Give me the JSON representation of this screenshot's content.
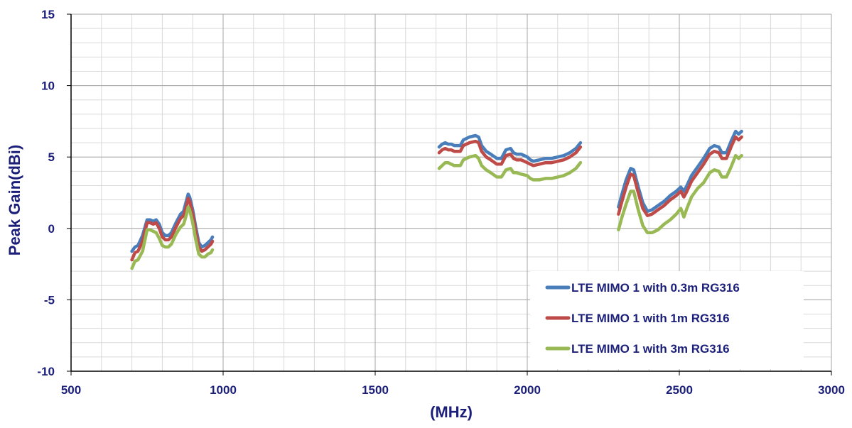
{
  "chart_data": {
    "type": "line",
    "xlabel": "(MHz)",
    "ylabel": "Peak Gain(dBi)",
    "xlim": [
      500,
      3000
    ],
    "ylim": [
      -10,
      15
    ],
    "x_ticks": [
      "500",
      "1000",
      "1500",
      "2000",
      "2500",
      "3000"
    ],
    "y_ticks": [
      "15",
      "10",
      "5",
      "0",
      "-5",
      "-10"
    ],
    "grid": true,
    "legend_position": "bottom-right",
    "series": [
      {
        "name": "LTE MIMO 1 with 0.3m RG316",
        "color": "#4a7ebb",
        "segments": [
          [
            [
              700,
              -1.6
            ],
            [
              710,
              -1.3
            ],
            [
              720,
              -1.2
            ],
            [
              735,
              -0.5
            ],
            [
              750,
              0.6
            ],
            [
              760,
              0.6
            ],
            [
              770,
              0.5
            ],
            [
              780,
              0.6
            ],
            [
              790,
              0.3
            ],
            [
              800,
              -0.3
            ],
            [
              810,
              -0.5
            ],
            [
              820,
              -0.5
            ],
            [
              830,
              -0.3
            ],
            [
              845,
              0.4
            ],
            [
              860,
              1.0
            ],
            [
              870,
              1.2
            ],
            [
              880,
              2.0
            ],
            [
              885,
              2.4
            ],
            [
              890,
              2.2
            ],
            [
              900,
              1.3
            ],
            [
              910,
              0.1
            ],
            [
              920,
              -1.0
            ],
            [
              930,
              -1.3
            ],
            [
              940,
              -1.2
            ],
            [
              950,
              -1.0
            ],
            [
              960,
              -0.8
            ],
            [
              965,
              -0.6
            ]
          ],
          [
            [
              1710,
              5.7
            ],
            [
              1720,
              5.9
            ],
            [
              1730,
              6.0
            ],
            [
              1740,
              5.9
            ],
            [
              1750,
              5.9
            ],
            [
              1760,
              5.8
            ],
            [
              1780,
              5.8
            ],
            [
              1790,
              6.2
            ],
            [
              1810,
              6.4
            ],
            [
              1830,
              6.5
            ],
            [
              1840,
              6.4
            ],
            [
              1850,
              5.8
            ],
            [
              1865,
              5.4
            ],
            [
              1880,
              5.2
            ],
            [
              1900,
              4.9
            ],
            [
              1915,
              4.9
            ],
            [
              1930,
              5.5
            ],
            [
              1945,
              5.6
            ],
            [
              1955,
              5.3
            ],
            [
              1965,
              5.2
            ],
            [
              1980,
              5.2
            ],
            [
              2000,
              5.0
            ],
            [
              2010,
              4.8
            ],
            [
              2020,
              4.7
            ],
            [
              2040,
              4.8
            ],
            [
              2060,
              4.9
            ],
            [
              2080,
              4.9
            ],
            [
              2100,
              5.0
            ],
            [
              2120,
              5.1
            ],
            [
              2140,
              5.3
            ],
            [
              2160,
              5.6
            ],
            [
              2175,
              6.0
            ]
          ],
          [
            [
              2300,
              1.5
            ],
            [
              2310,
              2.3
            ],
            [
              2325,
              3.4
            ],
            [
              2340,
              4.2
            ],
            [
              2350,
              4.1
            ],
            [
              2365,
              2.9
            ],
            [
              2380,
              1.8
            ],
            [
              2395,
              1.2
            ],
            [
              2410,
              1.3
            ],
            [
              2430,
              1.6
            ],
            [
              2450,
              1.9
            ],
            [
              2470,
              2.3
            ],
            [
              2490,
              2.6
            ],
            [
              2505,
              2.9
            ],
            [
              2515,
              2.6
            ],
            [
              2525,
              3.0
            ],
            [
              2540,
              3.7
            ],
            [
              2560,
              4.3
            ],
            [
              2580,
              4.9
            ],
            [
              2600,
              5.6
            ],
            [
              2615,
              5.8
            ],
            [
              2630,
              5.7
            ],
            [
              2640,
              5.3
            ],
            [
              2655,
              5.3
            ],
            [
              2670,
              6.1
            ],
            [
              2685,
              6.8
            ],
            [
              2695,
              6.6
            ],
            [
              2705,
              6.8
            ]
          ]
        ]
      },
      {
        "name": "LTE MIMO 1 with 1m RG316",
        "color": "#be4b48",
        "segments": [
          [
            [
              700,
              -2.2
            ],
            [
              710,
              -1.7
            ],
            [
              720,
              -1.6
            ],
            [
              735,
              -0.9
            ],
            [
              750,
              0.4
            ],
            [
              760,
              0.4
            ],
            [
              770,
              0.3
            ],
            [
              780,
              0.4
            ],
            [
              790,
              0.0
            ],
            [
              800,
              -0.6
            ],
            [
              810,
              -0.8
            ],
            [
              820,
              -0.8
            ],
            [
              830,
              -0.6
            ],
            [
              845,
              0.1
            ],
            [
              860,
              0.7
            ],
            [
              870,
              0.9
            ],
            [
              880,
              1.6
            ],
            [
              885,
              2.1
            ],
            [
              890,
              1.9
            ],
            [
              900,
              1.0
            ],
            [
              910,
              -0.2
            ],
            [
              920,
              -1.3
            ],
            [
              930,
              -1.6
            ],
            [
              940,
              -1.5
            ],
            [
              950,
              -1.3
            ],
            [
              960,
              -1.1
            ],
            [
              965,
              -0.9
            ]
          ],
          [
            [
              1710,
              5.3
            ],
            [
              1720,
              5.5
            ],
            [
              1730,
              5.6
            ],
            [
              1740,
              5.5
            ],
            [
              1750,
              5.5
            ],
            [
              1760,
              5.4
            ],
            [
              1780,
              5.4
            ],
            [
              1790,
              5.8
            ],
            [
              1810,
              6.0
            ],
            [
              1830,
              6.1
            ],
            [
              1840,
              6.0
            ],
            [
              1850,
              5.4
            ],
            [
              1865,
              5.0
            ],
            [
              1880,
              4.8
            ],
            [
              1900,
              4.5
            ],
            [
              1915,
              4.5
            ],
            [
              1930,
              5.1
            ],
            [
              1945,
              5.2
            ],
            [
              1955,
              4.9
            ],
            [
              1965,
              4.8
            ],
            [
              1980,
              4.8
            ],
            [
              2000,
              4.6
            ],
            [
              2010,
              4.5
            ],
            [
              2020,
              4.4
            ],
            [
              2040,
              4.5
            ],
            [
              2060,
              4.6
            ],
            [
              2080,
              4.6
            ],
            [
              2100,
              4.7
            ],
            [
              2120,
              4.8
            ],
            [
              2140,
              5.0
            ],
            [
              2160,
              5.3
            ],
            [
              2175,
              5.7
            ]
          ],
          [
            [
              2300,
              1.0
            ],
            [
              2310,
              1.8
            ],
            [
              2325,
              2.9
            ],
            [
              2340,
              3.8
            ],
            [
              2350,
              3.7
            ],
            [
              2365,
              2.5
            ],
            [
              2380,
              1.4
            ],
            [
              2395,
              0.9
            ],
            [
              2410,
              1.0
            ],
            [
              2430,
              1.3
            ],
            [
              2450,
              1.6
            ],
            [
              2470,
              2.0
            ],
            [
              2490,
              2.3
            ],
            [
              2505,
              2.6
            ],
            [
              2515,
              2.2
            ],
            [
              2525,
              2.6
            ],
            [
              2540,
              3.3
            ],
            [
              2560,
              3.9
            ],
            [
              2580,
              4.5
            ],
            [
              2600,
              5.2
            ],
            [
              2615,
              5.4
            ],
            [
              2630,
              5.3
            ],
            [
              2640,
              4.9
            ],
            [
              2655,
              4.9
            ],
            [
              2670,
              5.7
            ],
            [
              2685,
              6.4
            ],
            [
              2695,
              6.2
            ],
            [
              2705,
              6.4
            ]
          ]
        ]
      },
      {
        "name": "LTE MIMO 1 with 3m RG316",
        "color": "#98b954",
        "segments": [
          [
            [
              700,
              -2.8
            ],
            [
              710,
              -2.3
            ],
            [
              720,
              -2.2
            ],
            [
              735,
              -1.6
            ],
            [
              750,
              -0.1
            ],
            [
              760,
              -0.1
            ],
            [
              770,
              -0.2
            ],
            [
              780,
              -0.3
            ],
            [
              790,
              -0.7
            ],
            [
              800,
              -1.2
            ],
            [
              810,
              -1.3
            ],
            [
              820,
              -1.3
            ],
            [
              830,
              -1.1
            ],
            [
              845,
              -0.4
            ],
            [
              860,
              0.1
            ],
            [
              870,
              0.3
            ],
            [
              880,
              1.0
            ],
            [
              885,
              1.5
            ],
            [
              890,
              1.3
            ],
            [
              900,
              0.4
            ],
            [
              910,
              -0.8
            ],
            [
              920,
              -1.8
            ],
            [
              930,
              -2.0
            ],
            [
              940,
              -2.0
            ],
            [
              950,
              -1.8
            ],
            [
              960,
              -1.7
            ],
            [
              965,
              -1.5
            ]
          ],
          [
            [
              1710,
              4.2
            ],
            [
              1720,
              4.4
            ],
            [
              1730,
              4.6
            ],
            [
              1740,
              4.6
            ],
            [
              1750,
              4.5
            ],
            [
              1760,
              4.4
            ],
            [
              1780,
              4.4
            ],
            [
              1790,
              4.8
            ],
            [
              1810,
              5.0
            ],
            [
              1830,
              5.1
            ],
            [
              1840,
              4.9
            ],
            [
              1850,
              4.4
            ],
            [
              1865,
              4.1
            ],
            [
              1880,
              3.9
            ],
            [
              1900,
              3.6
            ],
            [
              1915,
              3.6
            ],
            [
              1930,
              4.1
            ],
            [
              1945,
              4.2
            ],
            [
              1955,
              3.9
            ],
            [
              1965,
              3.9
            ],
            [
              1980,
              3.8
            ],
            [
              2000,
              3.7
            ],
            [
              2010,
              3.5
            ],
            [
              2020,
              3.4
            ],
            [
              2040,
              3.4
            ],
            [
              2060,
              3.5
            ],
            [
              2080,
              3.5
            ],
            [
              2100,
              3.6
            ],
            [
              2120,
              3.7
            ],
            [
              2140,
              3.9
            ],
            [
              2160,
              4.2
            ],
            [
              2175,
              4.6
            ]
          ],
          [
            [
              2300,
              -0.1
            ],
            [
              2310,
              0.7
            ],
            [
              2325,
              1.7
            ],
            [
              2340,
              2.6
            ],
            [
              2350,
              2.6
            ],
            [
              2365,
              1.3
            ],
            [
              2380,
              0.2
            ],
            [
              2395,
              -0.3
            ],
            [
              2410,
              -0.3
            ],
            [
              2430,
              -0.1
            ],
            [
              2450,
              0.3
            ],
            [
              2470,
              0.6
            ],
            [
              2490,
              1.0
            ],
            [
              2505,
              1.4
            ],
            [
              2515,
              0.8
            ],
            [
              2525,
              1.4
            ],
            [
              2540,
              2.2
            ],
            [
              2560,
              2.8
            ],
            [
              2580,
              3.2
            ],
            [
              2600,
              3.9
            ],
            [
              2615,
              4.1
            ],
            [
              2630,
              4.0
            ],
            [
              2640,
              3.6
            ],
            [
              2655,
              3.6
            ],
            [
              2670,
              4.3
            ],
            [
              2685,
              5.1
            ],
            [
              2695,
              4.9
            ],
            [
              2705,
              5.1
            ]
          ]
        ]
      }
    ]
  }
}
